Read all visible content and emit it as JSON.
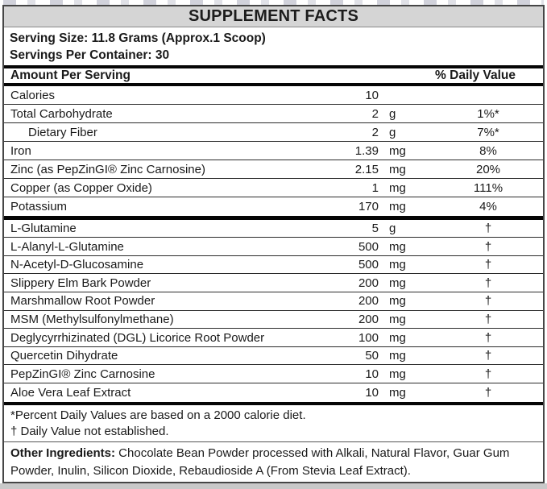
{
  "label": {
    "title": "SUPPLEMENT FACTS",
    "serving_size": "Serving Size: 11.8 Grams (Approx.1 Scoop)",
    "servings_per_container": "Servings Per Container: 30",
    "columns": {
      "amount_header": "Amount Per Serving",
      "dv_header": "% Daily Value"
    },
    "rows_top": [
      {
        "name": "Calories",
        "amount": "10",
        "unit": "",
        "dv": "",
        "indent": false
      },
      {
        "name": "Total Carbohydrate",
        "amount": "2",
        "unit": "g",
        "dv": "1%*",
        "indent": false
      },
      {
        "name": "Dietary Fiber",
        "amount": "2",
        "unit": "g",
        "dv": "7%*",
        "indent": true
      },
      {
        "name": "Iron",
        "amount": "1.39",
        "unit": "mg",
        "dv": "8%",
        "indent": false
      },
      {
        "name": "Zinc (as PepZinGI® Zinc Carnosine)",
        "amount": "2.15",
        "unit": "mg",
        "dv": "20%",
        "indent": false
      },
      {
        "name": "Copper (as Copper Oxide)",
        "amount": "1",
        "unit": "mg",
        "dv": "111%",
        "indent": false
      },
      {
        "name": "Potassium",
        "amount": "170",
        "unit": "mg",
        "dv": "4%",
        "indent": false
      }
    ],
    "rows_bottom": [
      {
        "name": "L-Glutamine",
        "amount": "5",
        "unit": "g",
        "dv": "†",
        "indent": false
      },
      {
        "name": "L-Alanyl-L-Glutamine",
        "amount": "500",
        "unit": "mg",
        "dv": "†",
        "indent": false
      },
      {
        "name": "N-Acetyl-D-Glucosamine",
        "amount": "500",
        "unit": "mg",
        "dv": "†",
        "indent": false
      },
      {
        "name": "Slippery Elm Bark Powder",
        "amount": "200",
        "unit": "mg",
        "dv": "†",
        "indent": false
      },
      {
        "name": "Marshmallow Root Powder",
        "amount": "200",
        "unit": "mg",
        "dv": "†",
        "indent": false
      },
      {
        "name": "MSM (Methylsulfonylmethane)",
        "amount": "200",
        "unit": "mg",
        "dv": "†",
        "indent": false
      },
      {
        "name": "Deglycyrrhizinated (DGL) Licorice Root Powder",
        "amount": "100",
        "unit": "mg",
        "dv": "†",
        "indent": false
      },
      {
        "name": "Quercetin Dihydrate",
        "amount": "50",
        "unit": "mg",
        "dv": "†",
        "indent": false
      },
      {
        "name": "PepZinGI® Zinc Carnosine",
        "amount": "10",
        "unit": "mg",
        "dv": "†",
        "indent": false
      },
      {
        "name": "Aloe Vera Leaf Extract",
        "amount": "10",
        "unit": "mg",
        "dv": "†",
        "indent": false
      }
    ],
    "footnotes": [
      "*Percent Daily Values are based on a 2000 calorie diet.",
      "† Daily Value not established."
    ],
    "other_ingredients_label": "Other Ingredients:",
    "other_ingredients_text": " Chocolate Bean Powder processed with Alkali, Natural Flavor, Guar Gum Powder, Inulin, Silicon Dioxide, Rebaudioside A (From Stevia Leaf Extract)."
  },
  "colors": {
    "title_bar_bg": "#d5d5d5",
    "separator_bar": "#050505",
    "text": "#1a1a1a",
    "border": "#464646",
    "bottom_strip": "#c9c9c9"
  }
}
